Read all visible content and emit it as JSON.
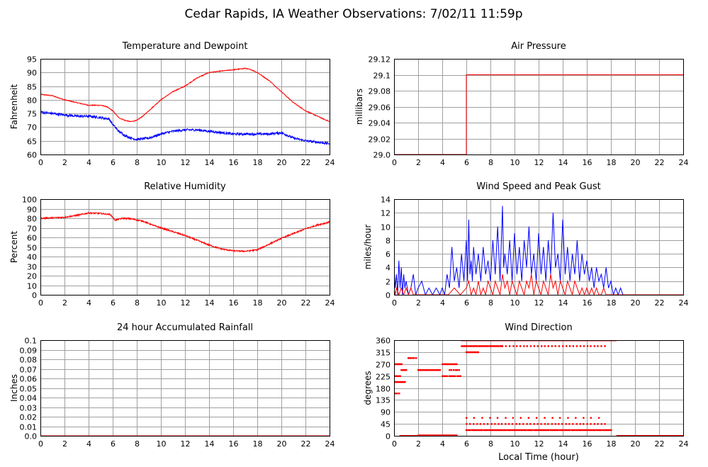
{
  "page": {
    "title": "Cedar Rapids, IA Weather Observations: 7/02/11 11:59p",
    "xaxis_label": "Local Time (hour)"
  },
  "colors": {
    "red": "#ff0000",
    "blue": "#0000ff",
    "grid": "#a0a0a0"
  },
  "chart_data": [
    {
      "id": "temp",
      "type": "line",
      "title": "Temperature and Dewpoint",
      "ylabel": "Fahrenheit",
      "xlabel": "",
      "xlim": [
        0,
        24
      ],
      "ylim": [
        60,
        95
      ],
      "xticks": [
        "0",
        "2",
        "4",
        "6",
        "8",
        "10",
        "12",
        "14",
        "16",
        "18",
        "20",
        "22",
        "24"
      ],
      "yticks": [
        "60",
        "65",
        "70",
        "75",
        "80",
        "85",
        "90",
        "95"
      ],
      "series": [
        {
          "color": "red",
          "noise": 0.15,
          "x": [
            0,
            1,
            2,
            3,
            4,
            5,
            5.5,
            6,
            6.5,
            7,
            7.5,
            8,
            8.5,
            9,
            10,
            11,
            12,
            12.5,
            13,
            14,
            15,
            16,
            17,
            17.5,
            18,
            19,
            20,
            21,
            22,
            23,
            24
          ],
          "y": [
            82,
            81.5,
            80,
            79,
            78,
            78,
            77.5,
            76,
            73.5,
            72.5,
            72,
            72.5,
            74,
            76,
            80,
            83,
            85,
            86.5,
            88,
            90,
            90.5,
            91,
            91.5,
            91,
            90,
            87,
            83,
            79,
            76,
            74,
            72
          ]
        },
        {
          "color": "blue",
          "noise": 0.45,
          "x": [
            0,
            1,
            2,
            3,
            4,
            5,
            5.7,
            6,
            6.5,
            7,
            7.5,
            8,
            9,
            10,
            11,
            12,
            13,
            14,
            15,
            16,
            17,
            18,
            19,
            20,
            21,
            22,
            23,
            24
          ],
          "y": [
            75.5,
            75,
            74.5,
            74,
            74,
            73.5,
            73,
            71,
            68.5,
            67,
            66,
            65.5,
            66,
            67.5,
            68.5,
            69,
            69,
            68.5,
            68,
            67.5,
            67.5,
            67.5,
            67.5,
            68,
            66,
            65,
            64.5,
            64
          ]
        }
      ]
    },
    {
      "id": "pres",
      "type": "line",
      "title": "Air Pressure",
      "ylabel": "millibars",
      "xlabel": "",
      "xlim": [
        0,
        24
      ],
      "ylim": [
        29.0,
        29.12
      ],
      "xticks": [
        "0",
        "2",
        "4",
        "6",
        "8",
        "10",
        "12",
        "14",
        "16",
        "18",
        "20",
        "22",
        "24"
      ],
      "yticks": [
        "29.0",
        "29.02",
        "29.04",
        "29.06",
        "29.08",
        "29.1",
        "29.12"
      ],
      "series": [
        {
          "color": "red",
          "noise": 0,
          "x": [
            0,
            6,
            6,
            24
          ],
          "y": [
            29.0,
            29.0,
            29.1,
            29.1
          ]
        }
      ]
    },
    {
      "id": "rh",
      "type": "line",
      "title": "Relative Humidity",
      "ylabel": "Percent",
      "xlabel": "",
      "xlim": [
        0,
        24
      ],
      "ylim": [
        0,
        100
      ],
      "xticks": [
        "0",
        "2",
        "4",
        "6",
        "8",
        "10",
        "12",
        "14",
        "16",
        "18",
        "20",
        "22",
        "24"
      ],
      "yticks": [
        "0",
        "10",
        "20",
        "30",
        "40",
        "50",
        "60",
        "70",
        "80",
        "90",
        "100"
      ],
      "series": [
        {
          "color": "red",
          "noise": 0.7,
          "x": [
            0,
            1,
            2,
            3,
            4,
            5,
            5.8,
            6.2,
            6.8,
            7.5,
            8.5,
            9.5,
            10,
            11,
            12,
            13,
            14,
            15,
            16,
            17,
            18,
            19,
            20,
            21,
            22,
            23,
            24
          ],
          "y": [
            80,
            80.5,
            81,
            83,
            85.5,
            85,
            84,
            78,
            80,
            79.5,
            77,
            72,
            70,
            66,
            62,
            57,
            52,
            48,
            46,
            45.5,
            47,
            53,
            59,
            64,
            69,
            73,
            76
          ]
        }
      ]
    },
    {
      "id": "wind",
      "type": "line",
      "title": "Wind Speed and Peak Gust",
      "ylabel": "miles/hour",
      "xlabel": "",
      "xlim": [
        0,
        24
      ],
      "ylim": [
        0,
        14
      ],
      "xticks": [
        "0",
        "2",
        "4",
        "6",
        "8",
        "10",
        "12",
        "14",
        "16",
        "18",
        "20",
        "22",
        "24"
      ],
      "yticks": [
        "0",
        "2",
        "4",
        "6",
        "8",
        "10",
        "12",
        "14"
      ],
      "series": [
        {
          "color": "blue",
          "noise": 0,
          "x": [
            0,
            0.1,
            0.2,
            0.3,
            0.4,
            0.5,
            0.6,
            0.7,
            0.8,
            0.9,
            1.0,
            1.2,
            1.4,
            1.6,
            1.8,
            2.0,
            2.3,
            2.6,
            2.9,
            3.2,
            3.5,
            3.8,
            4.0,
            4.2,
            4.4,
            4.6,
            4.8,
            5.0,
            5.2,
            5.4,
            5.6,
            5.8,
            6.0,
            6.1,
            6.2,
            6.3,
            6.4,
            6.5,
            6.6,
            6.8,
            7.0,
            7.2,
            7.4,
            7.6,
            7.8,
            8.0,
            8.2,
            8.4,
            8.6,
            8.8,
            9.0,
            9.1,
            9.2,
            9.4,
            9.6,
            9.8,
            10.0,
            10.2,
            10.4,
            10.6,
            10.8,
            11.0,
            11.2,
            11.4,
            11.6,
            11.8,
            12.0,
            12.2,
            12.4,
            12.6,
            12.8,
            13.0,
            13.2,
            13.4,
            13.6,
            13.8,
            14.0,
            14.2,
            14.4,
            14.6,
            14.8,
            15.0,
            15.2,
            15.4,
            15.6,
            15.8,
            16.0,
            16.2,
            16.4,
            16.6,
            16.8,
            17.0,
            17.2,
            17.4,
            17.6,
            17.8,
            18.0,
            18.2,
            18.4,
            18.6,
            18.8,
            19.0,
            20,
            22,
            24
          ],
          "y": [
            4,
            1,
            3,
            0,
            5,
            1,
            4,
            0,
            3,
            1,
            2,
            0,
            1,
            3,
            0,
            1,
            2,
            0,
            1,
            0,
            1,
            0,
            1,
            0,
            3,
            1,
            7,
            2,
            4,
            1,
            6,
            2,
            8,
            2,
            11,
            3,
            5,
            2,
            7,
            3,
            6,
            2,
            7,
            3,
            5,
            2,
            8,
            3,
            10,
            2,
            13,
            4,
            6,
            3,
            8,
            2,
            9,
            3,
            7,
            2,
            8,
            4,
            10,
            3,
            6,
            2,
            9,
            3,
            7,
            2,
            8,
            3,
            12,
            4,
            6,
            2,
            11,
            3,
            7,
            2,
            6,
            3,
            8,
            2,
            6,
            3,
            5,
            2,
            4,
            1,
            4,
            2,
            3,
            1,
            4,
            1,
            2,
            0,
            1,
            0,
            1,
            0,
            0,
            0,
            0
          ]
        },
        {
          "color": "red",
          "noise": 0,
          "x": [
            0,
            0.1,
            0.2,
            0.4,
            0.6,
            0.8,
            1.0,
            1.2,
            1.4,
            1.6,
            1.8,
            2.0,
            3.0,
            4.0,
            4.5,
            5.0,
            5.5,
            6.0,
            6.2,
            6.4,
            6.6,
            6.8,
            7.0,
            7.2,
            7.4,
            7.6,
            7.8,
            8.0,
            8.2,
            8.4,
            8.6,
            8.8,
            9.0,
            9.2,
            9.4,
            9.6,
            9.8,
            10.0,
            10.2,
            10.4,
            10.6,
            10.8,
            11.0,
            11.2,
            11.4,
            11.6,
            11.8,
            12.0,
            12.2,
            12.4,
            12.6,
            12.8,
            13.0,
            13.2,
            13.4,
            13.6,
            13.8,
            14.0,
            14.2,
            14.4,
            14.6,
            14.8,
            15.0,
            15.2,
            15.4,
            15.6,
            15.8,
            16.0,
            16.2,
            16.4,
            16.6,
            16.8,
            17.0,
            17.2,
            17.4,
            17.6,
            17.8,
            18.0,
            20,
            22,
            24
          ],
          "y": [
            1,
            0,
            1,
            0,
            1,
            0,
            1,
            0,
            1,
            0,
            0,
            0,
            0,
            0,
            0,
            1,
            0,
            1,
            2,
            0,
            1,
            0,
            2,
            0,
            1,
            0,
            2,
            1,
            0,
            2,
            1,
            0,
            3,
            1,
            2,
            0,
            2,
            1,
            0,
            2,
            1,
            0,
            2,
            1,
            3,
            0,
            2,
            1,
            0,
            2,
            1,
            0,
            3,
            1,
            2,
            0,
            2,
            1,
            0,
            2,
            1,
            0,
            2,
            1,
            0,
            1,
            0,
            1,
            0,
            1,
            0,
            1,
            0,
            0,
            1,
            0,
            0,
            0,
            0,
            0,
            0
          ]
        }
      ]
    },
    {
      "id": "rain",
      "type": "line",
      "title": "24 hour Accumulated Rainfall",
      "ylabel": "Inches",
      "xlabel": "",
      "xlim": [
        0,
        24
      ],
      "ylim": [
        0,
        0.1
      ],
      "xticks": [
        "0",
        "2",
        "4",
        "6",
        "8",
        "10",
        "12",
        "14",
        "16",
        "18",
        "20",
        "22",
        "24"
      ],
      "yticks": [
        "0.0",
        "0.01",
        "0.02",
        "0.03",
        "0.04",
        "0.05",
        "0.06",
        "0.07",
        "0.08",
        "0.09",
        "0.1"
      ],
      "series": [
        {
          "color": "red",
          "noise": 0,
          "x": [
            0,
            24
          ],
          "y": [
            0,
            0
          ]
        }
      ]
    },
    {
      "id": "wdir",
      "type": "scatter",
      "title": "Wind Direction",
      "ylabel": "degrees",
      "xlabel": "Local Time (hour)",
      "xlim": [
        0,
        24
      ],
      "ylim": [
        0,
        360
      ],
      "xticks": [
        "0",
        "2",
        "4",
        "6",
        "8",
        "10",
        "12",
        "14",
        "16",
        "18",
        "20",
        "22",
        "24"
      ],
      "yticks": [
        "0",
        "45",
        "90",
        "135",
        "180",
        "225",
        "270",
        "315",
        "360"
      ],
      "series": [
        {
          "color": "red",
          "clusters": [
            {
              "x0": 0,
              "x1": 0.6,
              "y": 270,
              "n": 10
            },
            {
              "x0": 0,
              "x1": 0.9,
              "y": 203,
              "n": 14
            },
            {
              "x0": 0,
              "x1": 0.5,
              "y": 225,
              "n": 8
            },
            {
              "x0": 0.6,
              "x1": 1.0,
              "y": 248,
              "n": 6
            },
            {
              "x0": 0.1,
              "x1": 0.4,
              "y": 160,
              "n": 3
            },
            {
              "x0": 0.5,
              "x1": 2.0,
              "y": 0,
              "n": 14
            },
            {
              "x0": 1.2,
              "x1": 1.8,
              "y": 293,
              "n": 6
            },
            {
              "x0": 2.0,
              "x1": 3.8,
              "y": 248,
              "n": 22
            },
            {
              "x0": 2.0,
              "x1": 5.2,
              "y": 2,
              "n": 40
            },
            {
              "x0": 4.0,
              "x1": 5.2,
              "y": 270,
              "n": 12
            },
            {
              "x0": 4.0,
              "x1": 5.5,
              "y": 225,
              "n": 12
            },
            {
              "x0": 4.6,
              "x1": 5.4,
              "y": 248,
              "n": 6
            },
            {
              "x0": 5.6,
              "x1": 18.4,
              "y": 360,
              "n": 120
            },
            {
              "x0": 5.6,
              "x1": 9.0,
              "y": 338,
              "n": 35
            },
            {
              "x0": 6.0,
              "x1": 7.0,
              "y": 315,
              "n": 10
            },
            {
              "x0": 6.0,
              "x1": 18.0,
              "y": 22,
              "n": 110
            },
            {
              "x0": 6.0,
              "x1": 17.5,
              "y": 45,
              "n": 40
            },
            {
              "x0": 6.0,
              "x1": 17.0,
              "y": 68,
              "n": 18
            },
            {
              "x0": 9.0,
              "x1": 17.5,
              "y": 338,
              "n": 30
            },
            {
              "x0": 18.5,
              "x1": 24,
              "y": 0,
              "n": 80
            }
          ]
        }
      ]
    }
  ]
}
